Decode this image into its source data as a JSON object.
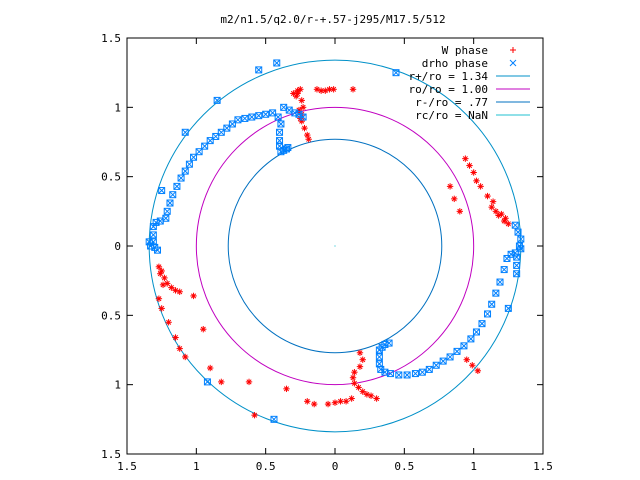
{
  "chart_data": {
    "type": "scatter",
    "title": "m2/n1.5/q2.0/r-+.57-j295/M17.5/512",
    "xlim": [
      -1.5,
      1.5
    ],
    "ylim": [
      -1.5,
      1.5
    ],
    "x_tick_values": [
      -1.5,
      -1.0,
      -0.5,
      0,
      0.5,
      1.0,
      1.5
    ],
    "x_tick_labels": [
      "1.5",
      "1",
      "0.5",
      "0",
      "0.5",
      "1",
      "1.5"
    ],
    "y_tick_values": [
      1.5,
      1.0,
      0.5,
      0,
      -0.5,
      -1.0,
      -1.5
    ],
    "y_tick_labels": [
      "1.5",
      "1",
      "0.5",
      "0",
      "0.5",
      "1",
      "1.5"
    ],
    "grid": false,
    "legend_position": "top-right",
    "colors": {
      "w_phase": "#ff0000",
      "drho_phase": "#0080ff",
      "r_plus": "#0090c8",
      "r_o": "#c000c0",
      "r_minus": "#0070c0",
      "r_c": "#20c0d0"
    },
    "circles": [
      {
        "name": "r+/ro = 1.34",
        "radius": 1.34
      },
      {
        "name": "ro/ro = 1.00",
        "radius": 1.0
      },
      {
        "name": "r-/ro = .77",
        "radius": 0.77
      },
      {
        "name": "rc/ro = NaN",
        "radius": null
      }
    ],
    "series": [
      {
        "name": "W phase",
        "marker": "plus-star",
        "points": [
          [
            -0.13,
            1.13
          ],
          [
            -0.1,
            1.12
          ],
          [
            -0.07,
            1.12
          ],
          [
            -0.04,
            1.13
          ],
          [
            -0.01,
            1.13
          ],
          [
            0.13,
            1.13
          ],
          [
            -0.27,
            1.1
          ],
          [
            -0.24,
            1.05
          ],
          [
            -0.23,
            1.0
          ],
          [
            -0.24,
            0.95
          ],
          [
            -0.24,
            0.9
          ],
          [
            -0.22,
            0.85
          ],
          [
            -0.2,
            0.8
          ],
          [
            -0.19,
            0.77
          ],
          [
            -0.3,
            1.1
          ],
          [
            -0.27,
            1.12
          ],
          [
            -0.25,
            1.13
          ],
          [
            -0.28,
            1.08
          ],
          [
            -0.26,
            0.98
          ],
          [
            -0.25,
            0.92
          ],
          [
            0.94,
            0.63
          ],
          [
            0.97,
            0.58
          ],
          [
            1.0,
            0.53
          ],
          [
            1.02,
            0.47
          ],
          [
            1.05,
            0.43
          ],
          [
            0.83,
            0.43
          ],
          [
            0.86,
            0.34
          ],
          [
            0.9,
            0.25
          ],
          [
            1.1,
            0.36
          ],
          [
            1.13,
            0.28
          ],
          [
            1.16,
            0.25
          ],
          [
            1.2,
            0.23
          ],
          [
            1.23,
            0.2
          ],
          [
            1.25,
            0.16
          ],
          [
            1.14,
            0.32
          ],
          [
            1.18,
            0.22
          ],
          [
            1.22,
            0.18
          ],
          [
            -1.27,
            -0.15
          ],
          [
            -1.25,
            -0.18
          ],
          [
            -1.23,
            -0.23
          ],
          [
            -1.21,
            -0.27
          ],
          [
            -1.18,
            -0.3
          ],
          [
            -1.15,
            -0.32
          ],
          [
            -1.12,
            -0.33
          ],
          [
            -1.26,
            -0.2
          ],
          [
            -1.24,
            -0.28
          ],
          [
            -1.27,
            -0.38
          ],
          [
            -1.25,
            -0.45
          ],
          [
            -1.2,
            -0.55
          ],
          [
            -1.15,
            -0.66
          ],
          [
            -1.12,
            -0.74
          ],
          [
            -1.08,
            -0.8
          ],
          [
            -1.02,
            -0.36
          ],
          [
            -0.95,
            -0.6
          ],
          [
            -0.9,
            -0.88
          ],
          [
            -0.82,
            -0.98
          ],
          [
            -0.62,
            -0.98
          ],
          [
            -0.58,
            -1.22
          ],
          [
            0.18,
            -0.77
          ],
          [
            0.2,
            -0.82
          ],
          [
            0.18,
            -0.87
          ],
          [
            0.14,
            -0.91
          ],
          [
            0.13,
            -0.95
          ],
          [
            0.14,
            -0.99
          ],
          [
            0.17,
            -1.02
          ],
          [
            0.2,
            -1.05
          ],
          [
            0.23,
            -1.07
          ],
          [
            0.26,
            -1.08
          ],
          [
            0.3,
            -1.1
          ],
          [
            0.12,
            -1.1
          ],
          [
            0.08,
            -1.12
          ],
          [
            0.04,
            -1.12
          ],
          [
            0.0,
            -1.13
          ],
          [
            -0.05,
            -1.14
          ],
          [
            -0.15,
            -1.14
          ],
          [
            -0.35,
            -1.03
          ],
          [
            -0.2,
            -1.12
          ],
          [
            0.95,
            -0.82
          ],
          [
            0.99,
            -0.86
          ],
          [
            1.03,
            -0.9
          ]
        ]
      },
      {
        "name": "drho phase",
        "marker": "x-square",
        "points": [
          [
            -0.39,
            0.68
          ],
          [
            -0.37,
            0.69
          ],
          [
            -0.35,
            0.7
          ],
          [
            -0.34,
            0.71
          ],
          [
            -0.4,
            0.72
          ],
          [
            -0.4,
            0.76
          ],
          [
            -0.4,
            0.82
          ],
          [
            -0.39,
            0.88
          ],
          [
            -0.41,
            0.93
          ],
          [
            -0.45,
            0.96
          ],
          [
            -0.5,
            0.95
          ],
          [
            -0.55,
            0.94
          ],
          [
            -0.6,
            0.93
          ],
          [
            -0.65,
            0.92
          ],
          [
            -0.7,
            0.91
          ],
          [
            -0.74,
            0.88
          ],
          [
            -0.78,
            0.85
          ],
          [
            -0.82,
            0.82
          ],
          [
            -0.86,
            0.79
          ],
          [
            -0.9,
            0.76
          ],
          [
            -0.94,
            0.72
          ],
          [
            -0.98,
            0.68
          ],
          [
            -1.02,
            0.64
          ],
          [
            -1.05,
            0.59
          ],
          [
            -1.08,
            0.54
          ],
          [
            -1.11,
            0.49
          ],
          [
            -1.14,
            0.43
          ],
          [
            -1.17,
            0.37
          ],
          [
            -1.19,
            0.31
          ],
          [
            -1.21,
            0.25
          ],
          [
            -1.22,
            0.2
          ],
          [
            -1.26,
            0.18
          ],
          [
            -1.29,
            0.17
          ],
          [
            -1.31,
            0.14
          ],
          [
            -1.31,
            0.08
          ],
          [
            -1.31,
            0.03
          ],
          [
            -1.3,
            -0.01
          ],
          [
            -1.28,
            -0.03
          ],
          [
            -0.37,
            1.0
          ],
          [
            -0.33,
            0.98
          ],
          [
            -0.29,
            0.96
          ],
          [
            -0.26,
            0.95
          ],
          [
            -0.23,
            0.93
          ],
          [
            -0.42,
            1.32
          ],
          [
            -0.55,
            1.27
          ],
          [
            -0.85,
            1.05
          ],
          [
            -1.08,
            0.82
          ],
          [
            -1.25,
            0.4
          ],
          [
            -1.33,
            0.0
          ],
          [
            -1.34,
            0.03
          ],
          [
            0.44,
            1.25
          ],
          [
            0.39,
            -0.7
          ],
          [
            0.36,
            -0.71
          ],
          [
            0.34,
            -0.73
          ],
          [
            0.32,
            -0.75
          ],
          [
            0.32,
            -0.8
          ],
          [
            0.32,
            -0.85
          ],
          [
            0.33,
            -0.89
          ],
          [
            0.36,
            -0.91
          ],
          [
            0.4,
            -0.92
          ],
          [
            0.46,
            -0.93
          ],
          [
            0.52,
            -0.93
          ],
          [
            0.58,
            -0.92
          ],
          [
            0.63,
            -0.91
          ],
          [
            0.68,
            -0.89
          ],
          [
            0.73,
            -0.86
          ],
          [
            0.78,
            -0.83
          ],
          [
            0.83,
            -0.8
          ],
          [
            0.88,
            -0.76
          ],
          [
            0.93,
            -0.72
          ],
          [
            0.98,
            -0.67
          ],
          [
            1.02,
            -0.62
          ],
          [
            1.06,
            -0.56
          ],
          [
            1.1,
            -0.49
          ],
          [
            1.13,
            -0.42
          ],
          [
            1.16,
            -0.34
          ],
          [
            1.19,
            -0.26
          ],
          [
            1.22,
            -0.17
          ],
          [
            1.24,
            -0.09
          ],
          [
            1.27,
            -0.06
          ],
          [
            1.3,
            -0.05
          ],
          [
            1.31,
            -0.08
          ],
          [
            1.31,
            -0.14
          ],
          [
            1.31,
            -0.2
          ],
          [
            1.34,
            -0.02
          ],
          [
            1.33,
            0.0
          ],
          [
            1.34,
            0.05
          ],
          [
            1.32,
            0.1
          ],
          [
            1.3,
            0.15
          ],
          [
            -0.44,
            -1.25
          ],
          [
            -0.92,
            -0.98
          ],
          [
            1.25,
            -0.45
          ]
        ]
      }
    ]
  }
}
